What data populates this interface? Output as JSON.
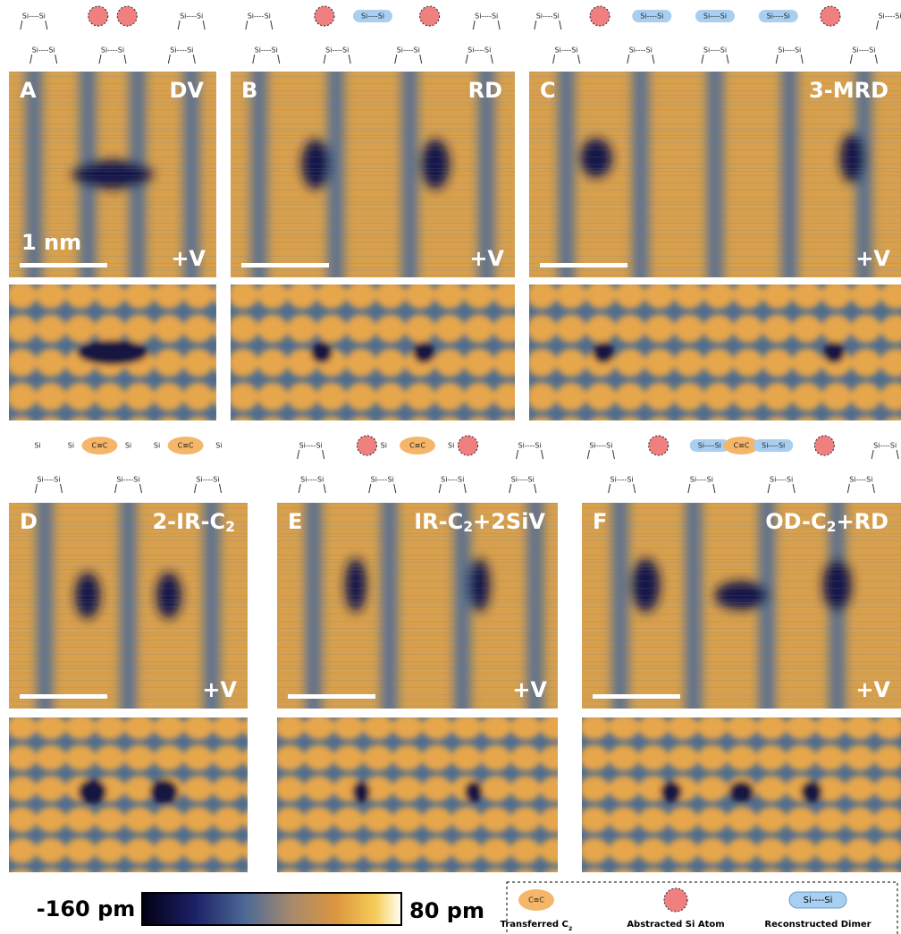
{
  "panels": [
    {
      "letter": "A",
      "label": [
        "DV"
      ],
      "bias": "+V",
      "scale": "1 nm"
    },
    {
      "letter": "B",
      "label": [
        "RD"
      ],
      "bias": "+V"
    },
    {
      "letter": "C",
      "label": [
        "3-MRD"
      ],
      "bias": "+V"
    },
    {
      "letter": "D",
      "label": [
        "2-IR-C",
        "2"
      ],
      "bias": "+V"
    },
    {
      "letter": "E",
      "label": [
        "IR-C",
        "2",
        "+2SiV"
      ],
      "bias": "+V"
    },
    {
      "letter": "F",
      "label": [
        "OD-C",
        "2",
        "+RD"
      ],
      "bias": "+V"
    }
  ],
  "schematic": {
    "dimer": "Si----Si",
    "c2": "C≡C",
    "si": "Si"
  },
  "colorbar": {
    "min": "-160 pm",
    "max": "80 pm"
  },
  "legend": [
    {
      "text": [
        "Transferred C",
        "2"
      ]
    },
    {
      "text": [
        "Abstracted Si Atom"
      ]
    },
    {
      "text": [
        "Reconstructed Dimer"
      ]
    }
  ]
}
